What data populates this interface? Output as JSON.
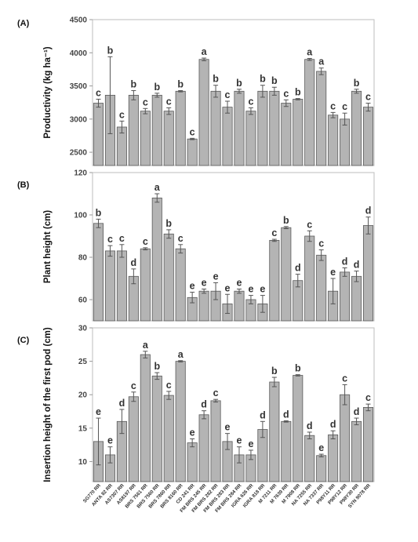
{
  "figure": {
    "categories": [
      "SG770 RR",
      "ANTA 82 RR",
      "AS7307 RR",
      "AS8197 RR",
      "BRS 7561 RR",
      "BRS 7560 RR",
      "BRS 7860 RR",
      "BRS 8160 RR",
      "CD 241 RR",
      "FM BRS 245 RR",
      "FM BRS 282 RR",
      "FM BRS 283 RR",
      "FM BRS 284 RR",
      "IGRA 626 RR",
      "IGRA 818 RR",
      "M 7211 RR",
      "M 7639 RR",
      "M 7908 RR",
      "NA 7255 RR",
      "NA 7337 RR",
      "P98Y11 RR",
      "P98Y12 RR",
      "P98Y30 RR",
      "SYN 9078 RR"
    ]
  },
  "chart_data": [
    {
      "type": "bar",
      "panel": "(A)",
      "ylabel": "Productivity (kg ha⁻¹)",
      "ylim": [
        2300,
        4500
      ],
      "yticks": [
        2500,
        3000,
        3500,
        4000,
        4500
      ],
      "values": [
        3240,
        3360,
        2880,
        3360,
        3120,
        3360,
        3120,
        3420,
        2700,
        3900,
        3420,
        3180,
        3420,
        3120,
        3420,
        3420,
        3240,
        3300,
        3900,
        3720,
        3060,
        3000,
        3420,
        3180
      ],
      "errors": [
        60,
        580,
        90,
        70,
        40,
        30,
        50,
        10,
        10,
        20,
        90,
        90,
        30,
        50,
        90,
        60,
        50,
        10,
        15,
        50,
        40,
        90,
        30,
        60
      ],
      "letters": [
        "c",
        "b",
        "c",
        "b",
        "c",
        "b",
        "c",
        "b",
        "c",
        "a",
        "b",
        "c",
        "b",
        "c",
        "b",
        "b",
        "c",
        "b",
        "a",
        "a",
        "c",
        "c",
        "b",
        "c"
      ]
    },
    {
      "type": "bar",
      "panel": "(B)",
      "ylabel": "Plant height (cm)",
      "ylim": [
        50,
        120
      ],
      "yticks": [
        60,
        80,
        100,
        120
      ],
      "values": [
        96,
        83,
        83,
        71,
        84,
        108,
        91,
        84,
        61,
        64,
        64,
        58,
        64,
        60,
        58,
        88,
        94,
        69,
        90,
        81,
        64,
        73,
        71,
        95
      ],
      "errors": [
        2,
        2.5,
        3,
        3.5,
        0.5,
        2,
        2,
        2,
        2.5,
        1,
        4,
        4.5,
        1,
        2,
        4,
        0.5,
        0.5,
        3,
        2.5,
        2.5,
        6,
        2,
        2.5,
        4
      ],
      "letters": [
        "b",
        "c",
        "c",
        "d",
        "c",
        "a",
        "b",
        "c",
        "e",
        "e",
        "e",
        "e",
        "e",
        "e",
        "e",
        "c",
        "b",
        "d",
        "c",
        "c",
        "e",
        "d",
        "d",
        "d"
      ]
    },
    {
      "type": "bar",
      "panel": "(C)",
      "ylabel": "Insertion height of the first pod (cm)",
      "ylim": [
        7,
        30
      ],
      "yticks": [
        10,
        15,
        20,
        25,
        30
      ],
      "values": [
        13,
        11,
        16,
        19.7,
        26,
        22.8,
        19.9,
        25,
        12.8,
        17,
        19.1,
        13,
        11,
        11,
        14.8,
        21.9,
        16,
        22.9,
        13.9,
        10.9,
        14,
        20,
        16,
        18.1
      ],
      "errors": [
        3.5,
        1.2,
        1.8,
        0.7,
        0.5,
        0.5,
        0.6,
        0.1,
        0.6,
        0.6,
        0.2,
        1.2,
        1.2,
        0.7,
        1.2,
        0.7,
        0.1,
        0.1,
        0.5,
        0.2,
        0.6,
        1.5,
        0.5,
        0.5
      ],
      "letters": [
        "e",
        "e",
        "d",
        "c",
        "a",
        "b",
        "c",
        "a",
        "e",
        "d",
        "c",
        "e",
        "e",
        "e",
        "d",
        "b",
        "d",
        "b",
        "d",
        "e",
        "d",
        "c",
        "d",
        "c"
      ]
    }
  ]
}
